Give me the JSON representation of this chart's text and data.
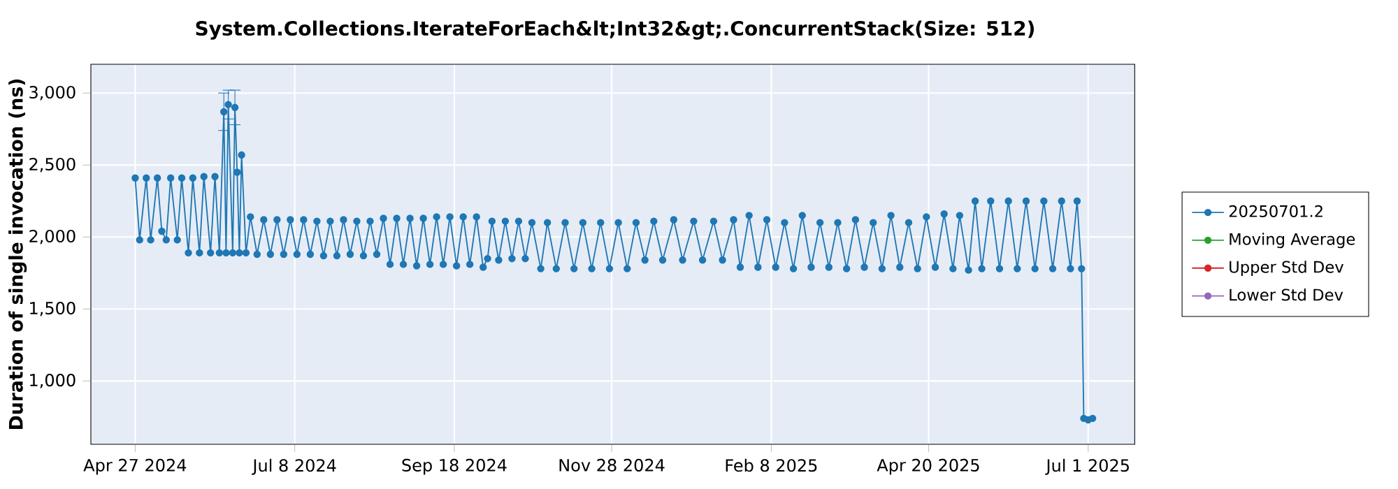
{
  "chart_data": {
    "type": "line",
    "title": "System.Collections.IterateForEach&lt;Int32&gt;.ConcurrentStack(Size: 512)",
    "ylabel": "Duration of single invocation (ns)",
    "xlim": [
      "2024-04-07",
      "2025-07-22"
    ],
    "xticks": [
      {
        "value": "2024-04-27",
        "label": "Apr 27 2024"
      },
      {
        "value": "2024-07-08",
        "label": "Jul 8 2024"
      },
      {
        "value": "2024-09-18",
        "label": "Sep 18 2024"
      },
      {
        "value": "2024-11-28",
        "label": "Nov 28 2024"
      },
      {
        "value": "2025-02-08",
        "label": "Feb 8 2025"
      },
      {
        "value": "2025-04-20",
        "label": "Apr 20 2025"
      },
      {
        "value": "2025-07-01",
        "label": "Jul 1 2025"
      }
    ],
    "ylim": [
      560,
      3200
    ],
    "yticks": [
      {
        "value": 1000,
        "label": "1,000"
      },
      {
        "value": 1500,
        "label": "1,500"
      },
      {
        "value": 2000,
        "label": "2,000"
      },
      {
        "value": 2500,
        "label": "2,500"
      },
      {
        "value": 3000,
        "label": "3,000"
      }
    ],
    "grid": true,
    "legend": "right",
    "marker": "circle",
    "line_style": "solid",
    "x": [
      "2024-04-27",
      "2024-04-29",
      "2024-05-02",
      "2024-05-04",
      "2024-05-07",
      "2024-05-09",
      "2024-05-11",
      "2024-05-13",
      "2024-05-16",
      "2024-05-18",
      "2024-05-21",
      "2024-05-23",
      "2024-05-26",
      "2024-05-28",
      "2024-05-31",
      "2024-06-02",
      "2024-06-04",
      "2024-06-06",
      "2024-06-07",
      "2024-06-08",
      "2024-06-10",
      "2024-06-11",
      "2024-06-12",
      "2024-06-13",
      "2024-06-14",
      "2024-06-16",
      "2024-06-18",
      "2024-06-21",
      "2024-06-24",
      "2024-06-27",
      "2024-06-30",
      "2024-07-03",
      "2024-07-06",
      "2024-07-09",
      "2024-07-12",
      "2024-07-15",
      "2024-07-18",
      "2024-07-21",
      "2024-07-24",
      "2024-07-27",
      "2024-07-30",
      "2024-08-02",
      "2024-08-05",
      "2024-08-08",
      "2024-08-11",
      "2024-08-14",
      "2024-08-17",
      "2024-08-20",
      "2024-08-23",
      "2024-08-26",
      "2024-08-29",
      "2024-09-01",
      "2024-09-04",
      "2024-09-07",
      "2024-09-10",
      "2024-09-13",
      "2024-09-16",
      "2024-09-19",
      "2024-09-22",
      "2024-09-25",
      "2024-09-28",
      "2024-10-01",
      "2024-10-03",
      "2024-10-05",
      "2024-10-08",
      "2024-10-11",
      "2024-10-14",
      "2024-10-17",
      "2024-10-20",
      "2024-10-23",
      "2024-10-27",
      "2024-10-30",
      "2024-11-03",
      "2024-11-07",
      "2024-11-11",
      "2024-11-15",
      "2024-11-19",
      "2024-11-23",
      "2024-11-27",
      "2024-12-01",
      "2024-12-05",
      "2024-12-09",
      "2024-12-13",
      "2024-12-17",
      "2024-12-21",
      "2024-12-26",
      "2024-12-30",
      "2025-01-04",
      "2025-01-08",
      "2025-01-13",
      "2025-01-17",
      "2025-01-22",
      "2025-01-25",
      "2025-01-29",
      "2025-02-02",
      "2025-02-06",
      "2025-02-10",
      "2025-02-14",
      "2025-02-18",
      "2025-02-22",
      "2025-02-26",
      "2025-03-02",
      "2025-03-06",
      "2025-03-10",
      "2025-03-14",
      "2025-03-18",
      "2025-03-22",
      "2025-03-26",
      "2025-03-30",
      "2025-04-03",
      "2025-04-07",
      "2025-04-11",
      "2025-04-15",
      "2025-04-19",
      "2025-04-23",
      "2025-04-27",
      "2025-05-01",
      "2025-05-04",
      "2025-05-08",
      "2025-05-11",
      "2025-05-14",
      "2025-05-18",
      "2025-05-22",
      "2025-05-26",
      "2025-05-30",
      "2025-06-03",
      "2025-06-07",
      "2025-06-11",
      "2025-06-15",
      "2025-06-19",
      "2025-06-23",
      "2025-06-26",
      "2025-06-28",
      "2025-06-29",
      "2025-07-01",
      "2025-07-03"
    ],
    "series": [
      {
        "name": "20250701.2",
        "color": "#1f77b4",
        "values": [
          2410,
          1980,
          2410,
          1980,
          2410,
          2040,
          1980,
          2410,
          1980,
          2410,
          1890,
          2410,
          1890,
          2420,
          1890,
          2420,
          1890,
          2870,
          1890,
          2920,
          1890,
          2900,
          2450,
          1890,
          2570,
          1890,
          2140,
          1880,
          2120,
          1880,
          2120,
          1880,
          2120,
          1880,
          2120,
          1880,
          2110,
          1870,
          2110,
          1870,
          2120,
          1880,
          2110,
          1870,
          2110,
          1880,
          2130,
          1810,
          2130,
          1810,
          2130,
          1800,
          2130,
          1810,
          2140,
          1810,
          2140,
          1800,
          2140,
          1810,
          2140,
          1790,
          1850,
          2110,
          1840,
          2110,
          1850,
          2110,
          1850,
          2100,
          1780,
          2100,
          1780,
          2100,
          1780,
          2100,
          1780,
          2100,
          1780,
          2100,
          1780,
          2100,
          1840,
          2110,
          1840,
          2120,
          1840,
          2110,
          1840,
          2110,
          1840,
          2120,
          1790,
          2150,
          1790,
          2120,
          1790,
          2100,
          1780,
          2150,
          1790,
          2100,
          1790,
          2100,
          1780,
          2120,
          1790,
          2100,
          1780,
          2150,
          1790,
          2100,
          1780,
          2140,
          1790,
          2160,
          1780,
          2150,
          1770,
          2250,
          1780,
          2250,
          1780,
          2250,
          1780,
          2250,
          1780,
          2250,
          1780,
          2250,
          1780,
          2250,
          1780,
          740,
          730,
          740
        ],
        "errors": [
          null,
          null,
          null,
          null,
          null,
          null,
          null,
          null,
          null,
          null,
          null,
          null,
          null,
          null,
          null,
          null,
          null,
          130,
          null,
          100,
          null,
          120,
          null,
          null,
          null,
          null,
          null,
          null,
          null,
          null,
          null,
          null,
          null,
          null,
          null,
          null,
          null,
          null,
          null,
          null,
          null,
          null,
          null,
          null,
          null,
          null,
          null,
          null,
          null,
          null,
          null,
          null,
          null,
          null,
          null,
          null,
          null,
          null,
          null,
          null,
          null,
          null,
          null,
          null,
          null,
          null,
          null,
          null,
          null,
          null,
          null,
          null,
          null,
          null,
          null,
          null,
          null,
          null,
          null,
          null,
          null,
          null,
          null,
          null,
          null,
          null,
          null,
          null,
          null,
          null,
          null,
          null,
          null,
          null,
          null,
          null,
          null,
          null,
          null,
          null,
          null,
          null,
          null,
          null,
          null,
          null,
          null,
          null,
          null,
          null,
          null,
          null,
          null,
          null,
          null,
          null,
          null,
          null,
          null,
          null,
          null,
          null,
          null,
          null,
          null,
          null,
          null,
          null,
          null,
          null,
          null,
          null,
          null,
          null,
          null,
          null
        ]
      },
      {
        "name": "Moving Average",
        "color": "#2ca02c",
        "values": [
          null,
          null,
          null,
          null,
          null,
          null,
          null,
          null,
          null,
          null,
          null,
          null,
          null,
          null,
          null,
          null,
          null,
          null,
          null,
          null,
          null,
          null,
          null,
          null,
          null,
          null,
          null,
          null,
          null,
          null,
          null,
          null,
          null,
          null,
          null,
          null,
          null,
          null,
          null,
          null,
          null,
          null,
          null,
          null,
          null,
          null,
          null,
          null,
          null,
          null,
          null,
          null,
          null,
          null,
          null,
          null,
          null,
          null,
          null,
          null,
          null,
          null,
          null,
          null,
          null,
          null,
          null,
          null,
          null,
          null,
          null,
          null,
          null,
          null,
          null,
          null,
          null,
          null,
          null,
          null,
          null,
          null,
          null,
          null,
          null,
          null,
          null,
          null,
          null,
          null,
          null,
          null,
          null,
          null,
          null,
          null,
          null,
          null,
          null,
          null,
          null,
          null,
          null,
          null,
          null,
          null,
          null,
          null,
          null,
          null,
          null,
          null,
          null,
          null,
          null,
          null,
          null,
          null,
          null,
          null,
          null,
          null,
          null,
          null,
          null,
          null,
          null,
          null,
          null,
          null,
          null,
          null,
          null,
          null,
          null,
          null
        ]
      },
      {
        "name": "Upper Std Dev",
        "color": "#d62728",
        "values": [
          null,
          null,
          null,
          null,
          null,
          null,
          null,
          null,
          null,
          null,
          null,
          null,
          null,
          null,
          null,
          null,
          null,
          null,
          null,
          null,
          null,
          null,
          null,
          null,
          null,
          null,
          null,
          null,
          null,
          null,
          null,
          null,
          null,
          null,
          null,
          null,
          null,
          null,
          null,
          null,
          null,
          null,
          null,
          null,
          null,
          null,
          null,
          null,
          null,
          null,
          null,
          null,
          null,
          null,
          null,
          null,
          null,
          null,
          null,
          null,
          null,
          null,
          null,
          null,
          null,
          null,
          null,
          null,
          null,
          null,
          null,
          null,
          null,
          null,
          null,
          null,
          null,
          null,
          null,
          null,
          null,
          null,
          null,
          null,
          null,
          null,
          null,
          null,
          null,
          null,
          null,
          null,
          null,
          null,
          null,
          null,
          null,
          null,
          null,
          null,
          null,
          null,
          null,
          null,
          null,
          null,
          null,
          null,
          null,
          null,
          null,
          null,
          null,
          null,
          null,
          null,
          null,
          null,
          null,
          null,
          null,
          null,
          null,
          null,
          null,
          null,
          null,
          null,
          null,
          null,
          null,
          null,
          null,
          null,
          null,
          null
        ]
      },
      {
        "name": "Lower Std Dev",
        "color": "#9467bd",
        "values": [
          null,
          null,
          null,
          null,
          null,
          null,
          null,
          null,
          null,
          null,
          null,
          null,
          null,
          null,
          null,
          null,
          null,
          null,
          null,
          null,
          null,
          null,
          null,
          null,
          null,
          null,
          null,
          null,
          null,
          null,
          null,
          null,
          null,
          null,
          null,
          null,
          null,
          null,
          null,
          null,
          null,
          null,
          null,
          null,
          null,
          null,
          null,
          null,
          null,
          null,
          null,
          null,
          null,
          null,
          null,
          null,
          null,
          null,
          null,
          null,
          null,
          null,
          null,
          null,
          null,
          null,
          null,
          null,
          null,
          null,
          null,
          null,
          null,
          null,
          null,
          null,
          null,
          null,
          null,
          null,
          null,
          null,
          null,
          null,
          null,
          null,
          null,
          null,
          null,
          null,
          null,
          null,
          null,
          null,
          null,
          null,
          null,
          null,
          null,
          null,
          null,
          null,
          null,
          null,
          null,
          null,
          null,
          null,
          null,
          null,
          null,
          null,
          null,
          null,
          null,
          null,
          null,
          null,
          null,
          null,
          null,
          null,
          null,
          null,
          null,
          null,
          null,
          null,
          null,
          null,
          null,
          null,
          null,
          null,
          null,
          null
        ]
      }
    ]
  }
}
